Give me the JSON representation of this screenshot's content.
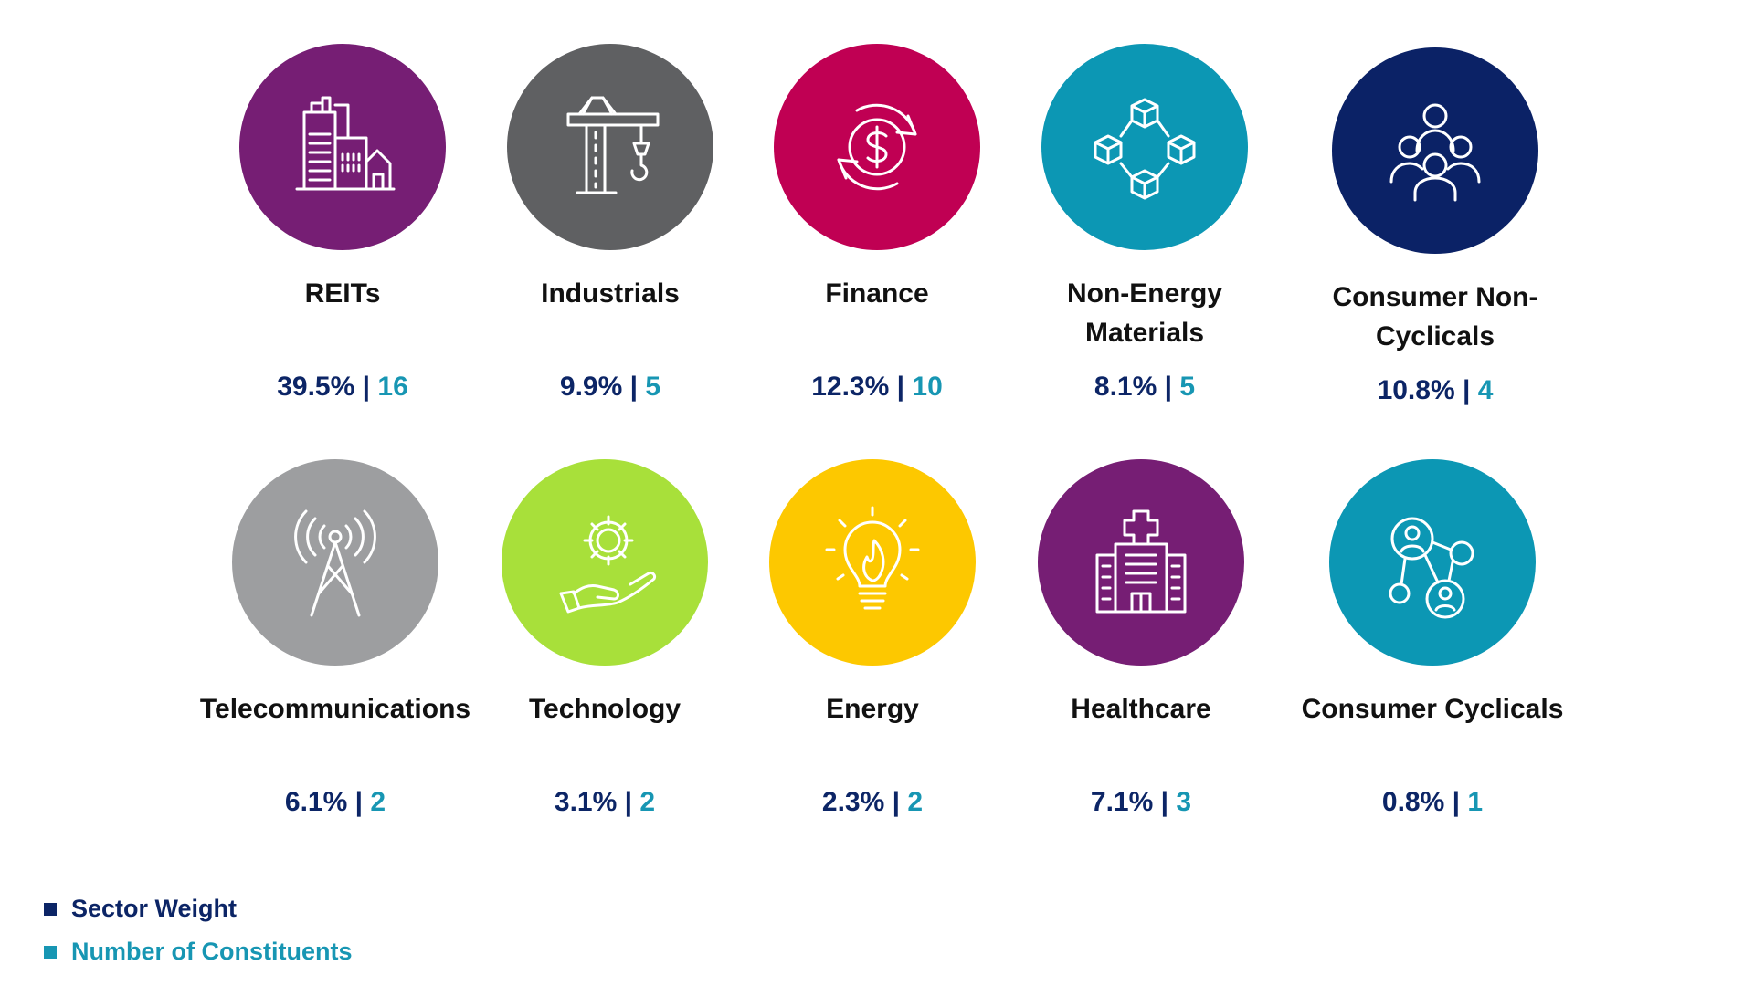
{
  "colors": {
    "weight_text": "#0c2566",
    "count_text": "#1796b3"
  },
  "sectors": [
    {
      "name": "REITs",
      "weight": "39.5%",
      "count": "16",
      "color": "#761e74",
      "icon": "buildings-icon"
    },
    {
      "name": "Industrials",
      "weight": "9.9%",
      "count": "5",
      "color": "#5f6062",
      "icon": "crane-icon"
    },
    {
      "name": "Finance",
      "weight": "12.3%",
      "count": "10",
      "color": "#c00053",
      "icon": "dollar-cycle-icon"
    },
    {
      "name": "Non-Energy Materials",
      "weight": "8.1%",
      "count": "5",
      "color": "#0c97b4",
      "icon": "cubes-network-icon"
    },
    {
      "name": "Consumer Non-Cyclicals",
      "weight": "10.8%",
      "count": "4",
      "color": "#0b2266",
      "icon": "people-group-icon"
    },
    {
      "name": "Telecommunications",
      "weight": "6.1%",
      "count": "2",
      "color": "#9d9ea0",
      "icon": "antenna-tower-icon"
    },
    {
      "name": "Technology",
      "weight": "3.1%",
      "count": "2",
      "color": "#a8e03a",
      "icon": "gear-hand-icon"
    },
    {
      "name": "Energy",
      "weight": "2.3%",
      "count": "2",
      "color": "#fdc800",
      "icon": "lightbulb-flame-icon"
    },
    {
      "name": "Healthcare",
      "weight": "7.1%",
      "count": "3",
      "color": "#761e74",
      "icon": "hospital-icon"
    },
    {
      "name": "Consumer Cyclicals",
      "weight": "0.8%",
      "count": "1",
      "color": "#0c97b4",
      "icon": "people-network-icon"
    }
  ],
  "separator": "|",
  "legend": [
    {
      "label": "Sector Weight",
      "color": "#0c2566"
    },
    {
      "label": "Number of Constituents",
      "color": "#1796b3"
    }
  ]
}
